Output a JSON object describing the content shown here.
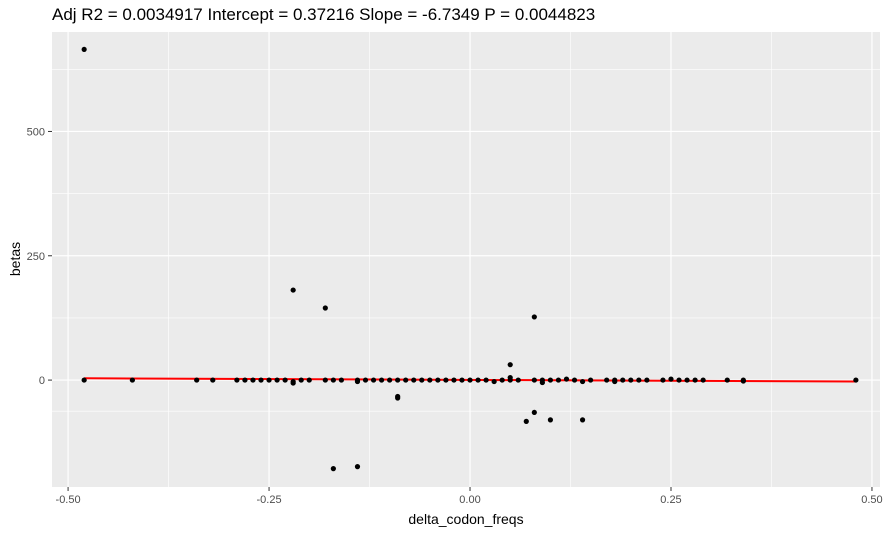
{
  "chart_data": {
    "type": "scatter",
    "title": "Adj R2 =  0.0034917 Intercept = 0.37216  Slope = -6.7349  P = 0.0044823",
    "xlabel": "delta_codon_freqs",
    "ylabel": "betas",
    "xlim": [
      -0.52,
      0.51
    ],
    "ylim": [
      -215,
      700
    ],
    "x_ticks": [
      -0.5,
      -0.25,
      0.0,
      0.25,
      0.5
    ],
    "x_tick_labels": [
      "-0.50",
      "-0.25",
      "0.00",
      "0.25",
      "0.50"
    ],
    "y_ticks": [
      0,
      250,
      500
    ],
    "y_tick_labels": [
      "0",
      "250",
      "500"
    ],
    "grid": true,
    "panel_background": "#EBEBEB",
    "point_color": "#000000",
    "fit_color": "#FF0000",
    "fit_line": {
      "intercept": 0.37216,
      "slope": -6.7349,
      "x_range": [
        -0.48,
        0.48
      ]
    },
    "points": [
      {
        "x": -0.48,
        "y": 665
      },
      {
        "x": -0.48,
        "y": 0
      },
      {
        "x": -0.42,
        "y": 0
      },
      {
        "x": -0.34,
        "y": 0
      },
      {
        "x": -0.32,
        "y": 0
      },
      {
        "x": -0.29,
        "y": 0
      },
      {
        "x": -0.28,
        "y": 0
      },
      {
        "x": -0.27,
        "y": 0
      },
      {
        "x": -0.26,
        "y": 0
      },
      {
        "x": -0.25,
        "y": 0
      },
      {
        "x": -0.24,
        "y": 0
      },
      {
        "x": -0.23,
        "y": 0
      },
      {
        "x": -0.22,
        "y": 181
      },
      {
        "x": -0.22,
        "y": -3
      },
      {
        "x": -0.22,
        "y": -6
      },
      {
        "x": -0.21,
        "y": 0
      },
      {
        "x": -0.2,
        "y": 0
      },
      {
        "x": -0.18,
        "y": 145
      },
      {
        "x": -0.18,
        "y": 0
      },
      {
        "x": -0.17,
        "y": -178
      },
      {
        "x": -0.17,
        "y": 0
      },
      {
        "x": -0.16,
        "y": 0
      },
      {
        "x": -0.14,
        "y": -174
      },
      {
        "x": -0.14,
        "y": 0
      },
      {
        "x": -0.14,
        "y": -3
      },
      {
        "x": -0.13,
        "y": 0
      },
      {
        "x": -0.12,
        "y": 0
      },
      {
        "x": -0.11,
        "y": 0
      },
      {
        "x": -0.1,
        "y": 0
      },
      {
        "x": -0.09,
        "y": -33
      },
      {
        "x": -0.09,
        "y": -36
      },
      {
        "x": -0.09,
        "y": 0
      },
      {
        "x": -0.08,
        "y": 0
      },
      {
        "x": -0.07,
        "y": 0
      },
      {
        "x": -0.06,
        "y": 0
      },
      {
        "x": -0.05,
        "y": 0
      },
      {
        "x": -0.04,
        "y": 0
      },
      {
        "x": -0.03,
        "y": 0
      },
      {
        "x": -0.02,
        "y": 0
      },
      {
        "x": -0.01,
        "y": 0
      },
      {
        "x": 0.0,
        "y": 0
      },
      {
        "x": 0.01,
        "y": 0
      },
      {
        "x": 0.02,
        "y": 0
      },
      {
        "x": 0.03,
        "y": -3
      },
      {
        "x": 0.04,
        "y": 0
      },
      {
        "x": 0.05,
        "y": 31
      },
      {
        "x": 0.05,
        "y": 5
      },
      {
        "x": 0.05,
        "y": 0
      },
      {
        "x": 0.06,
        "y": 0
      },
      {
        "x": 0.07,
        "y": -83
      },
      {
        "x": 0.08,
        "y": 127
      },
      {
        "x": 0.08,
        "y": -65
      },
      {
        "x": 0.08,
        "y": 0
      },
      {
        "x": 0.09,
        "y": -5
      },
      {
        "x": 0.09,
        "y": 0
      },
      {
        "x": 0.1,
        "y": -80
      },
      {
        "x": 0.1,
        "y": 0
      },
      {
        "x": 0.11,
        "y": 0
      },
      {
        "x": 0.12,
        "y": 2
      },
      {
        "x": 0.13,
        "y": 0
      },
      {
        "x": 0.14,
        "y": -80
      },
      {
        "x": 0.14,
        "y": -3
      },
      {
        "x": 0.15,
        "y": 0
      },
      {
        "x": 0.17,
        "y": 0
      },
      {
        "x": 0.18,
        "y": 0
      },
      {
        "x": 0.18,
        "y": -3
      },
      {
        "x": 0.19,
        "y": 0
      },
      {
        "x": 0.2,
        "y": 0
      },
      {
        "x": 0.21,
        "y": 0
      },
      {
        "x": 0.22,
        "y": 0
      },
      {
        "x": 0.24,
        "y": 0
      },
      {
        "x": 0.25,
        "y": 2
      },
      {
        "x": 0.26,
        "y": 0
      },
      {
        "x": 0.27,
        "y": 0
      },
      {
        "x": 0.28,
        "y": 0
      },
      {
        "x": 0.29,
        "y": 0
      },
      {
        "x": 0.32,
        "y": 0
      },
      {
        "x": 0.34,
        "y": 0
      },
      {
        "x": 0.34,
        "y": -2
      },
      {
        "x": 0.48,
        "y": 0
      }
    ]
  }
}
